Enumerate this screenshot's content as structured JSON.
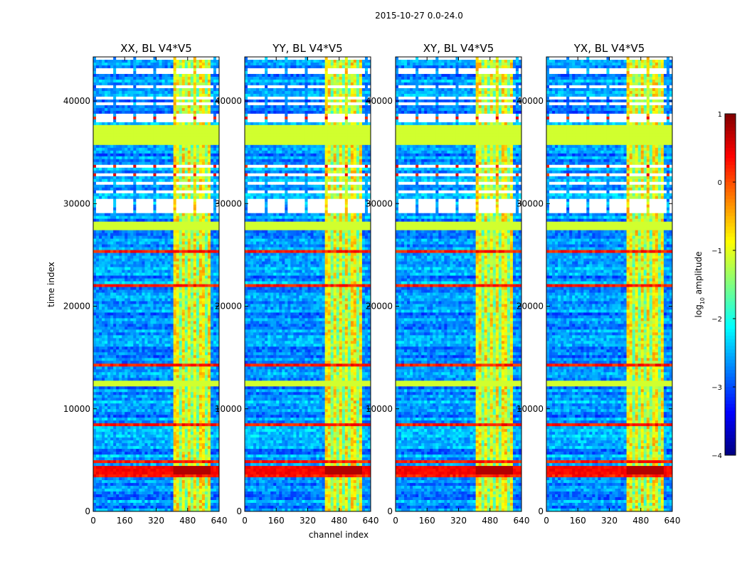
{
  "figure": {
    "suptitle": "2015-10-27 0.0-24.0"
  },
  "chart_data": {
    "type": "heatmap",
    "xlabel": "channel index",
    "ylabel": "time index",
    "xlim": [
      0,
      640
    ],
    "ylim": [
      0,
      44300
    ],
    "xticks": [
      0,
      160,
      320,
      480,
      640
    ],
    "yticks": [
      0,
      10000,
      20000,
      30000,
      40000
    ],
    "panels": [
      {
        "title": "XX, BL V4*V5",
        "xlabel": "",
        "ylabel": "time index"
      },
      {
        "title": "YY, BL V4*V5",
        "xlabel": "channel index",
        "ylabel": ""
      },
      {
        "title": "XY, BL V4*V5",
        "xlabel": "",
        "ylabel": ""
      },
      {
        "title": "YX, BL V4*V5",
        "xlabel": "",
        "ylabel": ""
      }
    ],
    "flagged_time_bands": [
      [
        27500,
        28300
      ],
      [
        35800,
        37700
      ],
      [
        12100,
        12600
      ]
    ],
    "strong_rfi_time_band": [
      3700,
      4500
    ],
    "bright_channel_range": [
      410,
      600
    ],
    "colorbar": {
      "label": "log",
      "label_sub": "10",
      "label_suffix": " amplitude",
      "range": [
        -4,
        1
      ],
      "ticks": [
        "1",
        "0",
        "−1",
        "−2",
        "−3",
        "−4"
      ],
      "colormap": "jet"
    }
  }
}
